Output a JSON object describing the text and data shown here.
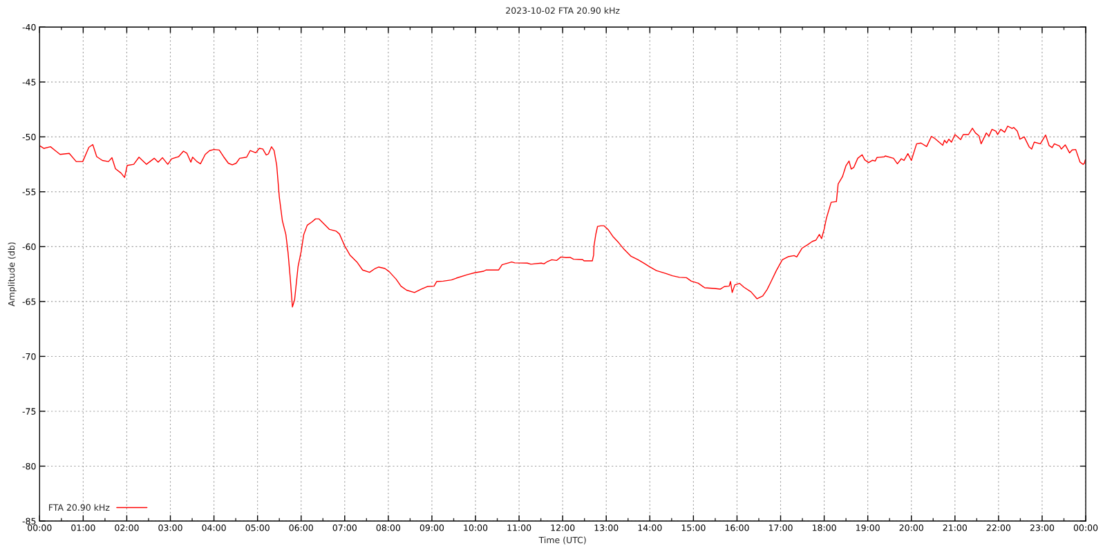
{
  "chart_data": {
    "type": "line",
    "title": "2023-10-02 FTA 20.90 kHz",
    "xlabel": "Time (UTC)",
    "ylabel": "Amplitude (db)",
    "xlim": [
      0,
      24
    ],
    "ylim": [
      -85,
      -40
    ],
    "xticks": [
      {
        "value": 0,
        "label": "00:00"
      },
      {
        "value": 0.5,
        "label": null
      },
      {
        "value": 1,
        "label": "01:00"
      },
      {
        "value": 1.5,
        "label": null
      },
      {
        "value": 2,
        "label": "02:00"
      },
      {
        "value": 2.5,
        "label": null
      },
      {
        "value": 3,
        "label": "03:00"
      },
      {
        "value": 3.5,
        "label": null
      },
      {
        "value": 4,
        "label": "04:00"
      },
      {
        "value": 4.5,
        "label": null
      },
      {
        "value": 5,
        "label": "05:00"
      },
      {
        "value": 5.5,
        "label": null
      },
      {
        "value": 6,
        "label": "06:00"
      },
      {
        "value": 6.5,
        "label": null
      },
      {
        "value": 7,
        "label": "07:00"
      },
      {
        "value": 7.5,
        "label": null
      },
      {
        "value": 8,
        "label": "08:00"
      },
      {
        "value": 8.5,
        "label": null
      },
      {
        "value": 9,
        "label": "09:00"
      },
      {
        "value": 9.5,
        "label": null
      },
      {
        "value": 10,
        "label": "10:00"
      },
      {
        "value": 10.5,
        "label": null
      },
      {
        "value": 11,
        "label": "11:00"
      },
      {
        "value": 11.5,
        "label": null
      },
      {
        "value": 12,
        "label": "12:00"
      },
      {
        "value": 12.5,
        "label": null
      },
      {
        "value": 13,
        "label": "13:00"
      },
      {
        "value": 13.5,
        "label": null
      },
      {
        "value": 14,
        "label": "14:00"
      },
      {
        "value": 14.5,
        "label": null
      },
      {
        "value": 15,
        "label": "15:00"
      },
      {
        "value": 15.5,
        "label": null
      },
      {
        "value": 16,
        "label": "16:00"
      },
      {
        "value": 16.5,
        "label": null
      },
      {
        "value": 17,
        "label": "17:00"
      },
      {
        "value": 17.5,
        "label": null
      },
      {
        "value": 18,
        "label": "18:00"
      },
      {
        "value": 18.5,
        "label": null
      },
      {
        "value": 19,
        "label": "19:00"
      },
      {
        "value": 19.5,
        "label": null
      },
      {
        "value": 20,
        "label": "20:00"
      },
      {
        "value": 20.5,
        "label": null
      },
      {
        "value": 21,
        "label": "21:00"
      },
      {
        "value": 21.5,
        "label": null
      },
      {
        "value": 22,
        "label": "22:00"
      },
      {
        "value": 22.5,
        "label": null
      },
      {
        "value": 23,
        "label": "23:00"
      },
      {
        "value": 23.5,
        "label": null
      },
      {
        "value": 24,
        "label": "00:00"
      }
    ],
    "yticks": [
      -85,
      -80,
      -75,
      -70,
      -65,
      -60,
      -55,
      -50,
      -45,
      -40
    ],
    "grid": true,
    "legend": "bottom left",
    "line_style": "solid",
    "series": [
      {
        "name": "FTA 20.90 kHz",
        "color": "#ff0000",
        "x": [
          0.0,
          0.1,
          0.25,
          0.36,
          0.47,
          0.68,
          0.84,
          0.99,
          1.13,
          1.22,
          1.31,
          1.44,
          1.58,
          1.66,
          1.74,
          1.87,
          1.95,
          2.01,
          2.16,
          2.28,
          2.45,
          2.63,
          2.72,
          2.82,
          2.94,
          3.03,
          3.19,
          3.3,
          3.38,
          3.47,
          3.51,
          3.61,
          3.69,
          3.8,
          3.9,
          4.0,
          4.12,
          4.22,
          4.33,
          4.42,
          4.51,
          4.59,
          4.75,
          4.83,
          4.96,
          5.04,
          5.12,
          5.2,
          5.25,
          5.32,
          5.38,
          5.44,
          5.5,
          5.57,
          5.65,
          5.7,
          5.75,
          5.8,
          5.85,
          5.93,
          6.0,
          6.06,
          6.14,
          6.25,
          6.33,
          6.41,
          6.54,
          6.65,
          6.8,
          6.88,
          7.0,
          7.12,
          7.28,
          7.41,
          7.57,
          7.7,
          7.78,
          7.92,
          8.02,
          8.18,
          8.29,
          8.42,
          8.6,
          8.76,
          8.89,
          9.05,
          9.11,
          9.26,
          9.45,
          9.56,
          9.82,
          9.98,
          10.19,
          10.24,
          10.53,
          10.61,
          10.83,
          10.9,
          11.19,
          11.27,
          11.51,
          11.57,
          11.65,
          11.75,
          11.86,
          11.96,
          12.08,
          12.17,
          12.25,
          12.46,
          12.49,
          12.68,
          12.71,
          12.72,
          12.76,
          12.8,
          12.88,
          12.95,
          13.04,
          13.15,
          13.28,
          13.41,
          13.57,
          13.73,
          13.89,
          13.99,
          14.15,
          14.37,
          14.52,
          14.68,
          14.84,
          14.95,
          15.11,
          15.26,
          15.48,
          15.62,
          15.71,
          15.82,
          15.85,
          15.89,
          15.95,
          16.06,
          16.16,
          16.32,
          16.46,
          16.59,
          16.69,
          16.77,
          16.9,
          17.04,
          17.17,
          17.31,
          17.37,
          17.49,
          17.62,
          17.73,
          17.81,
          17.89,
          17.94,
          18.0,
          18.05,
          18.16,
          18.28,
          18.32,
          18.42,
          18.5,
          18.57,
          18.62,
          18.68,
          18.77,
          18.87,
          18.93,
          19.02,
          19.11,
          19.17,
          19.21,
          19.38,
          19.4,
          19.59,
          19.68,
          19.77,
          19.83,
          19.92,
          20.0,
          20.12,
          20.22,
          20.35,
          20.46,
          20.54,
          20.72,
          20.76,
          20.81,
          20.86,
          20.92,
          21.0,
          21.13,
          21.19,
          21.31,
          21.4,
          21.47,
          21.55,
          21.6,
          21.72,
          21.78,
          21.85,
          21.94,
          21.98,
          22.05,
          22.14,
          22.21,
          22.31,
          22.35,
          22.43,
          22.49,
          22.59,
          22.7,
          22.76,
          22.82,
          22.96,
          23.08,
          23.16,
          23.23,
          23.28,
          23.4,
          23.44,
          23.53,
          23.63,
          23.69,
          23.77,
          23.87,
          23.94,
          23.97,
          23.99
        ],
        "values": [
          -50.8,
          -51.05,
          -50.9,
          -51.25,
          -51.6,
          -51.5,
          -52.25,
          -52.25,
          -50.95,
          -50.7,
          -51.8,
          -52.15,
          -52.25,
          -51.9,
          -52.9,
          -53.3,
          -53.7,
          -52.6,
          -52.5,
          -51.85,
          -52.5,
          -51.95,
          -52.3,
          -51.9,
          -52.5,
          -52.0,
          -51.8,
          -51.3,
          -51.5,
          -52.3,
          -51.85,
          -52.25,
          -52.45,
          -51.6,
          -51.25,
          -51.15,
          -51.2,
          -51.8,
          -52.4,
          -52.55,
          -52.4,
          -51.95,
          -51.85,
          -51.25,
          -51.45,
          -51.05,
          -51.1,
          -51.65,
          -51.55,
          -50.9,
          -51.25,
          -52.6,
          -55.5,
          -57.65,
          -58.9,
          -60.55,
          -62.85,
          -65.5,
          -64.85,
          -61.8,
          -60.46,
          -58.9,
          -58.05,
          -57.74,
          -57.47,
          -57.47,
          -58.0,
          -58.43,
          -58.58,
          -58.85,
          -59.94,
          -60.77,
          -61.4,
          -62.13,
          -62.34,
          -61.99,
          -61.86,
          -61.99,
          -62.28,
          -62.97,
          -63.6,
          -63.97,
          -64.18,
          -63.87,
          -63.64,
          -63.6,
          -63.18,
          -63.14,
          -63.03,
          -62.87,
          -62.55,
          -62.38,
          -62.24,
          -62.13,
          -62.13,
          -61.65,
          -61.4,
          -61.48,
          -61.5,
          -61.6,
          -61.5,
          -61.57,
          -61.36,
          -61.19,
          -61.26,
          -60.94,
          -61.0,
          -60.98,
          -61.15,
          -61.19,
          -61.3,
          -61.3,
          -60.77,
          -59.9,
          -58.89,
          -58.16,
          -58.1,
          -58.1,
          -58.43,
          -59.06,
          -59.62,
          -60.25,
          -60.88,
          -61.19,
          -61.57,
          -61.82,
          -62.18,
          -62.45,
          -62.66,
          -62.8,
          -62.83,
          -63.14,
          -63.33,
          -63.75,
          -63.81,
          -63.87,
          -63.64,
          -63.6,
          -63.18,
          -64.18,
          -63.49,
          -63.35,
          -63.7,
          -64.12,
          -64.75,
          -64.5,
          -63.91,
          -63.28,
          -62.2,
          -61.19,
          -60.92,
          -60.82,
          -60.94,
          -60.15,
          -59.83,
          -59.52,
          -59.41,
          -58.89,
          -59.27,
          -58.4,
          -57.43,
          -55.96,
          -55.9,
          -54.29,
          -53.62,
          -52.62,
          -52.2,
          -52.93,
          -52.78,
          -51.95,
          -51.63,
          -52.09,
          -52.34,
          -52.13,
          -52.2,
          -51.88,
          -51.82,
          -51.74,
          -51.95,
          -52.45,
          -51.99,
          -52.15,
          -51.53,
          -52.15,
          -50.63,
          -50.56,
          -50.88,
          -49.96,
          -50.15,
          -50.77,
          -50.31,
          -50.56,
          -50.21,
          -50.48,
          -49.79,
          -50.25,
          -49.79,
          -49.79,
          -49.21,
          -49.64,
          -49.9,
          -50.63,
          -49.64,
          -49.94,
          -49.31,
          -49.48,
          -49.79,
          -49.31,
          -49.58,
          -49.02,
          -49.23,
          -49.14,
          -49.48,
          -50.21,
          -50.0,
          -50.9,
          -51.11,
          -50.48,
          -50.63,
          -49.83,
          -50.79,
          -50.98,
          -50.63,
          -50.84,
          -51.11,
          -50.73,
          -51.46,
          -51.19,
          -51.15,
          -52.3,
          -52.51,
          -52.4,
          -52.09
        ]
      }
    ]
  }
}
